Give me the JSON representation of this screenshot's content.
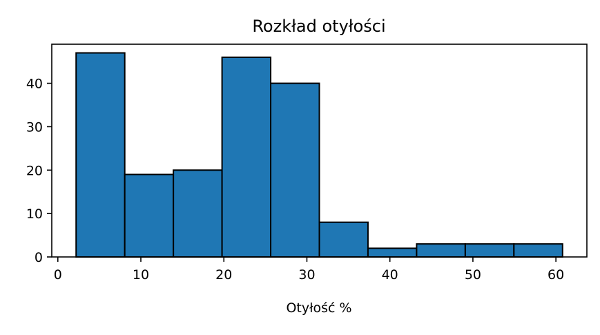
{
  "chart_data": {
    "type": "bar",
    "title": "Rozkład otyłości",
    "xlabel": "Otyłość %",
    "ylabel": "",
    "bin_edges": [
      2.2,
      8.06,
      13.92,
      19.78,
      25.64,
      31.5,
      37.36,
      43.22,
      49.08,
      54.94,
      60.8
    ],
    "values": [
      47,
      19,
      20,
      46,
      40,
      8,
      2,
      3,
      3,
      3
    ],
    "xlim": [
      -0.73,
      63.73
    ],
    "ylim": [
      0,
      49
    ],
    "x_ticks": [
      0,
      10,
      20,
      30,
      40,
      50,
      60
    ],
    "y_ticks": [
      0,
      10,
      20,
      30,
      40
    ],
    "bar_color": "#1f77b4",
    "edge_color": "#000000",
    "grid": false
  }
}
